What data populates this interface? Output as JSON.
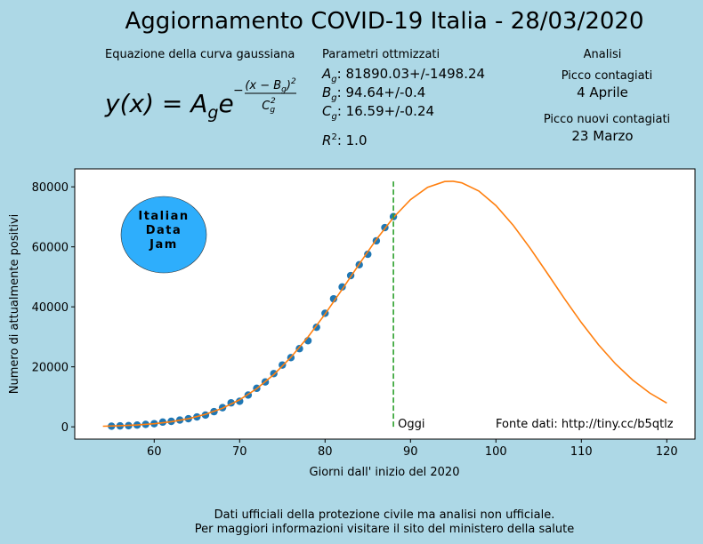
{
  "chart_data": {
    "type": "scatter_fit",
    "title": "Aggiornamento COVID-19 Italia - 28/03/2020",
    "equation_title": "Equazione della curva gaussiana",
    "equation": {
      "lhs": "y(x) = A",
      "lhs_sub": "g",
      "base": "e",
      "sign": "−",
      "num": "(x − B",
      "num_sub": "g",
      "num_close": ")",
      "num_sup": "2",
      "den": "C",
      "den_sub": "g",
      "den_sup": "2"
    },
    "params_title": "Parametri ottmizzati",
    "params": [
      {
        "symbol": "A",
        "sub": "g",
        "text": ": 81890.03+/-1498.24"
      },
      {
        "symbol": "B",
        "sub": "g",
        "text": ": 94.64+/-0.4"
      },
      {
        "symbol": "C",
        "sub": "g",
        "text": ": 16.59+/-0.24"
      }
    ],
    "r2": {
      "symbol": "R",
      "sup": "2",
      "text": ": 1.0"
    },
    "analysis": {
      "title": "Analisi",
      "items": [
        {
          "label": "Picco contagiati",
          "value": "4 Aprile"
        },
        {
          "label": "Picco nuovi contagiati",
          "value": "23 Marzo"
        }
      ]
    },
    "logo": [
      "Italian",
      "Data",
      "Jam"
    ],
    "x_label": "Giorni dall' inizio del 2020",
    "y_label": "Numero di attualmente positivi",
    "xlim": [
      50.7,
      123.3
    ],
    "ylim": [
      -4094,
      85984
    ],
    "xticks": [
      60,
      70,
      80,
      90,
      100,
      110,
      120
    ],
    "yticks": [
      0,
      20000,
      40000,
      60000,
      80000
    ],
    "points": {
      "color": "#1f77b4",
      "x": [
        55,
        56,
        57,
        58,
        59,
        60,
        61,
        62,
        63,
        64,
        65,
        66,
        67,
        68,
        69,
        70,
        71,
        72,
        73,
        74,
        75,
        76,
        77,
        78,
        79,
        80,
        81,
        82,
        83,
        84,
        85,
        86,
        87,
        88
      ],
      "values": [
        221,
        311,
        385,
        588,
        821,
        1049,
        1577,
        1835,
        2263,
        2706,
        3296,
        3916,
        5061,
        6387,
        7985,
        8514,
        10590,
        12839,
        14955,
        17750,
        20603,
        23073,
        26062,
        28710,
        33190,
        37860,
        42681,
        46638,
        50418,
        54030,
        57521,
        62013,
        66414,
        70065
      ]
    },
    "fit": {
      "color": "#ff7f0e",
      "x": [
        54,
        56,
        58,
        60,
        62,
        64,
        66,
        68,
        70,
        72,
        74,
        76,
        78,
        80,
        82,
        84,
        86,
        88,
        90,
        92,
        94,
        95,
        96,
        98,
        100,
        102,
        104,
        106,
        108,
        110,
        112,
        114,
        116,
        118,
        120
      ],
      "values": [
        203,
        361,
        624,
        1047,
        1707,
        2703,
        4157,
        6214,
        9019,
        12717,
        17420,
        23175,
        29945,
        37588,
        45826,
        54275,
        62437,
        69768,
        75729,
        79843,
        81768,
        81852,
        81341,
        78599,
        73772,
        67261,
        59565,
        51238,
        42813,
        34749,
        27397,
        20981,
        15607,
        11275,
        7915
      ]
    },
    "today": {
      "x": 88,
      "y": [
        0,
        81890
      ],
      "color": "#2ca02c",
      "label": "Oggi"
    },
    "source": "Fonte dati: http://tiny.cc/b5qtlz",
    "footer": [
      "Dati ufficiali della protezione civile ma analisi non ufficiale.",
      "Per maggiori informazioni visitare il sito del ministero della salute"
    ]
  }
}
